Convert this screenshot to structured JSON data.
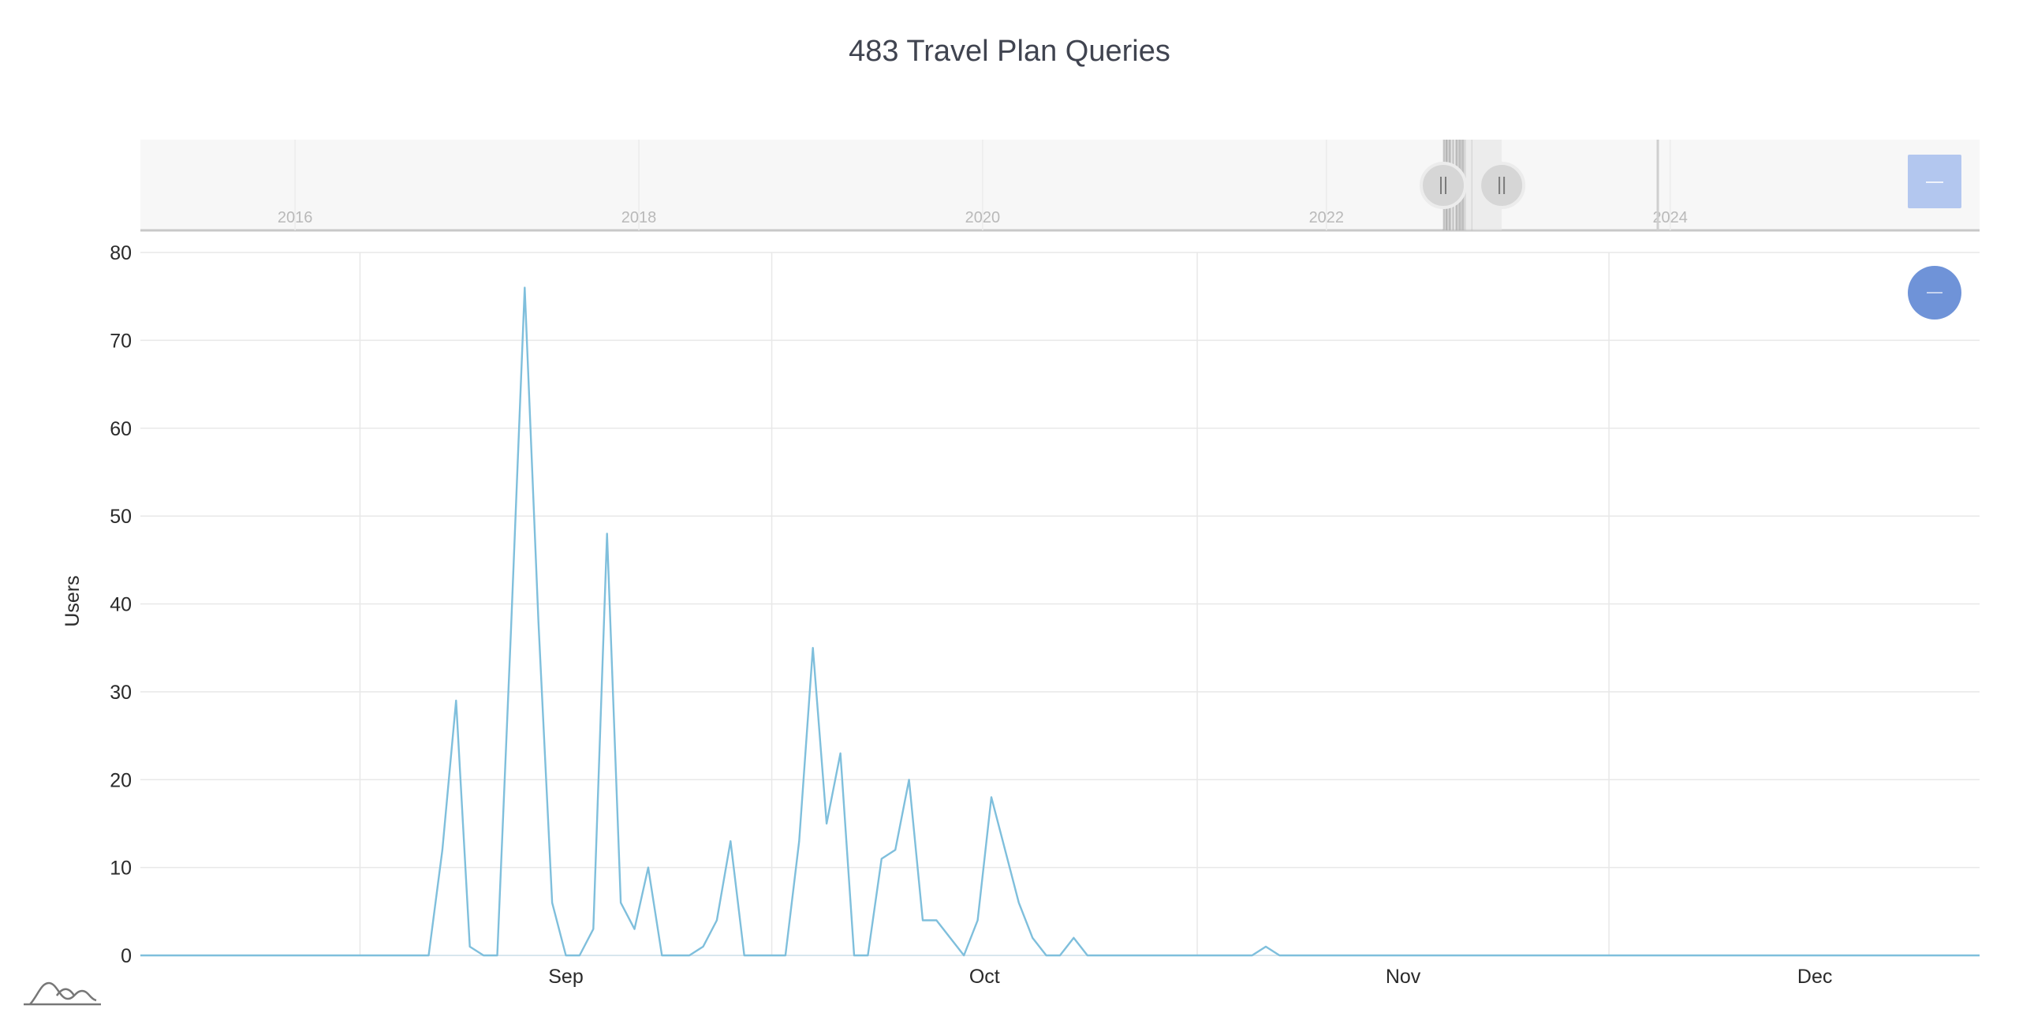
{
  "title": "483 Travel Plan Queries",
  "colors": {
    "series": "#7fbfdc",
    "grid": "#e8e8e8",
    "navigator_bg": "#f7f7f7",
    "zoom_button": "#6f93d8",
    "navigator_button": "#b3c7ef"
  },
  "icons": {
    "reset_zoom": "minus-icon",
    "navigator_reset": "minus-icon",
    "logo": "amcharts-logo-icon"
  },
  "navigator": {
    "year_labels": [
      "2016",
      "2018",
      "2020",
      "2022",
      "2024"
    ],
    "year_range": [
      2015.1,
      2025.8
    ],
    "selection": [
      2022.68,
      2023.02
    ]
  },
  "chart_data": {
    "type": "line",
    "title": "483 Travel Plan Queries",
    "xlabel": "",
    "ylabel": "Users",
    "ylim": [
      0,
      80
    ],
    "yticks": [
      0,
      10,
      20,
      30,
      40,
      50,
      60,
      70,
      80
    ],
    "xlim": [
      "2022-08-16",
      "2022-12-28"
    ],
    "xticks": [
      {
        "label": "Sep",
        "date": "2022-09-01"
      },
      {
        "label": "Oct",
        "date": "2022-10-01"
      },
      {
        "label": "Nov",
        "date": "2022-11-01"
      },
      {
        "label": "Dec",
        "date": "2022-12-01"
      }
    ],
    "grid": true,
    "series": [
      {
        "x": [
          "2022-08-16",
          "2022-09-06",
          "2022-09-07",
          "2022-09-08",
          "2022-09-09",
          "2022-09-10",
          "2022-09-11",
          "2022-09-12",
          "2022-09-13",
          "2022-09-14",
          "2022-09-15",
          "2022-09-16",
          "2022-09-17",
          "2022-09-18",
          "2022-09-19",
          "2022-09-20",
          "2022-09-21",
          "2022-09-22",
          "2022-09-23",
          "2022-09-24",
          "2022-09-25",
          "2022-09-26",
          "2022-09-27",
          "2022-09-28",
          "2022-09-29",
          "2022-09-30",
          "2022-10-01",
          "2022-10-02",
          "2022-10-03",
          "2022-10-04",
          "2022-10-05",
          "2022-10-06",
          "2022-10-07",
          "2022-10-08",
          "2022-10-09",
          "2022-10-10",
          "2022-10-11",
          "2022-10-12",
          "2022-10-13",
          "2022-10-14",
          "2022-10-15",
          "2022-10-16",
          "2022-10-17",
          "2022-10-18",
          "2022-10-19",
          "2022-10-20",
          "2022-10-21",
          "2022-10-22",
          "2022-10-23",
          "2022-10-24",
          "2022-10-25",
          "2022-10-26",
          "2022-10-27",
          "2022-10-28",
          "2022-11-05",
          "2022-11-06",
          "2022-11-07",
          "2022-12-28"
        ],
        "values": [
          0,
          0,
          12,
          29,
          1,
          0,
          0,
          37,
          76,
          38,
          6,
          0,
          0,
          3,
          48,
          6,
          3,
          10,
          0,
          0,
          0,
          1,
          4,
          13,
          0,
          0,
          0,
          0,
          13,
          35,
          15,
          23,
          0,
          0,
          11,
          12,
          20,
          4,
          4,
          2,
          0,
          4,
          18,
          12,
          6,
          2,
          0,
          0,
          2,
          0,
          0,
          0,
          0,
          0,
          0,
          1,
          0,
          0
        ]
      }
    ]
  }
}
